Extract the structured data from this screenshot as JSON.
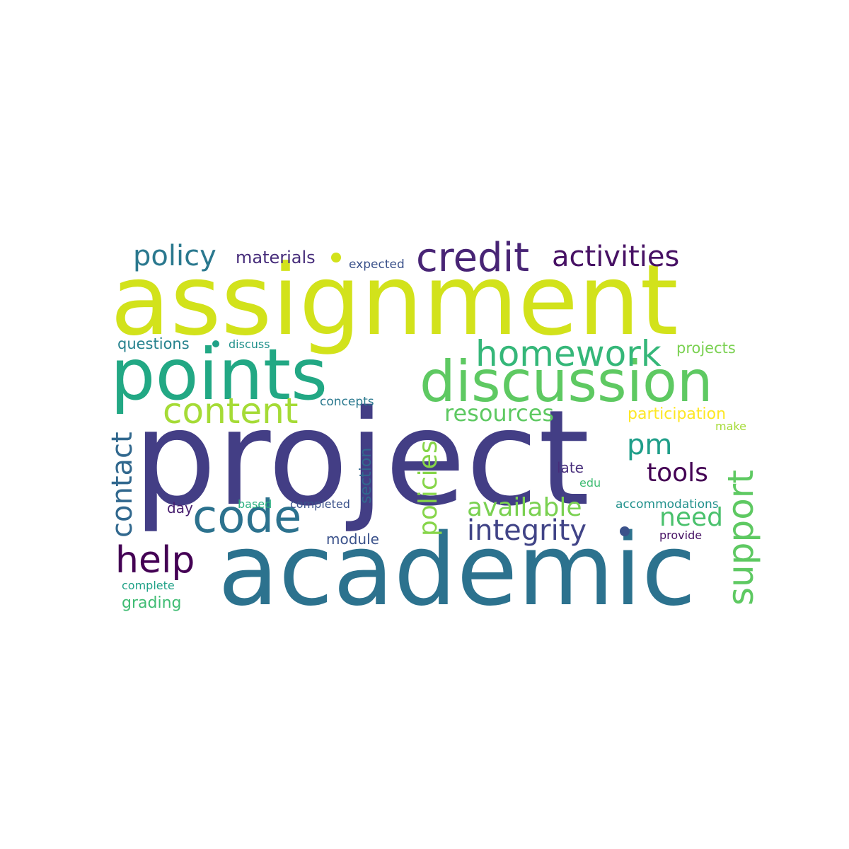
{
  "palette": {
    "yellow": "#fde725",
    "lime": "#d2e21b",
    "light_green": "#a5db36",
    "green": "#5ec962",
    "green_teal": "#3fbc73",
    "teal": "#21918c",
    "teal_green": "#1fa187",
    "blue_teal": "#2a788e",
    "blue": "#31688e",
    "indigo": "#3b528b",
    "violet": "#472d7b",
    "dark_violet": "#482878",
    "deep_purple": "#440154"
  },
  "words": [
    {
      "text": "assignment",
      "color": "#d2e21b"
    },
    {
      "text": "project",
      "color": "#433e85"
    },
    {
      "text": "academic",
      "color": "#2c728e"
    },
    {
      "text": "points",
      "color": "#22a884"
    },
    {
      "text": "discussion",
      "color": "#5ec962"
    },
    {
      "text": "credit",
      "color": "#482475"
    },
    {
      "text": "activities",
      "color": "#471164"
    },
    {
      "text": "policy",
      "color": "#2a788e"
    },
    {
      "text": "materials",
      "color": "#472d7b"
    },
    {
      "text": "expected",
      "color": "#3b528b"
    },
    {
      "text": "homework",
      "color": "#35b779"
    },
    {
      "text": "content",
      "color": "#a5db36"
    },
    {
      "text": "questions",
      "color": "#26828e"
    },
    {
      "text": "discuss",
      "color": "#21918c"
    },
    {
      "text": "projects",
      "color": "#7ad151"
    },
    {
      "text": "concepts",
      "color": "#2a788e"
    },
    {
      "text": "resources",
      "color": "#5ec962"
    },
    {
      "text": "participation",
      "color": "#fde725"
    },
    {
      "text": "make",
      "color": "#a5db36"
    },
    {
      "text": "contact",
      "color": "#31688e"
    },
    {
      "text": "policies",
      "color": "#86d549"
    },
    {
      "text": "support",
      "color": "#5ec962"
    },
    {
      "text": "section",
      "color": "#31688e"
    },
    {
      "text": "pm",
      "color": "#1f9e89"
    },
    {
      "text": "tools",
      "color": "#440154"
    },
    {
      "text": "late",
      "color": "#472d7b"
    },
    {
      "text": "edu",
      "color": "#3fbc73"
    },
    {
      "text": "code",
      "color": "#2c728e"
    },
    {
      "text": "available",
      "color": "#7ad151"
    },
    {
      "text": "accommodations",
      "color": "#21918c"
    },
    {
      "text": "need",
      "color": "#4ac16d"
    },
    {
      "text": "integrity",
      "color": "#414487"
    },
    {
      "text": "day",
      "color": "#481f70"
    },
    {
      "text": "based",
      "color": "#2ab07f"
    },
    {
      "text": "completed",
      "color": "#3b528b"
    },
    {
      "text": "help",
      "color": "#440154"
    },
    {
      "text": "module",
      "color": "#3b528b"
    },
    {
      "text": "provide",
      "color": "#471164"
    },
    {
      "text": "complete",
      "color": "#1fa187"
    },
    {
      "text": "grading",
      "color": "#3fbc73"
    }
  ],
  "dots": [
    {
      "name": "dot-marker-yellow",
      "color": "#d2e21b"
    },
    {
      "name": "dot-marker-teal",
      "color": "#1fa187"
    },
    {
      "name": "dot-marker-indigo",
      "color": "#3b528b"
    }
  ]
}
